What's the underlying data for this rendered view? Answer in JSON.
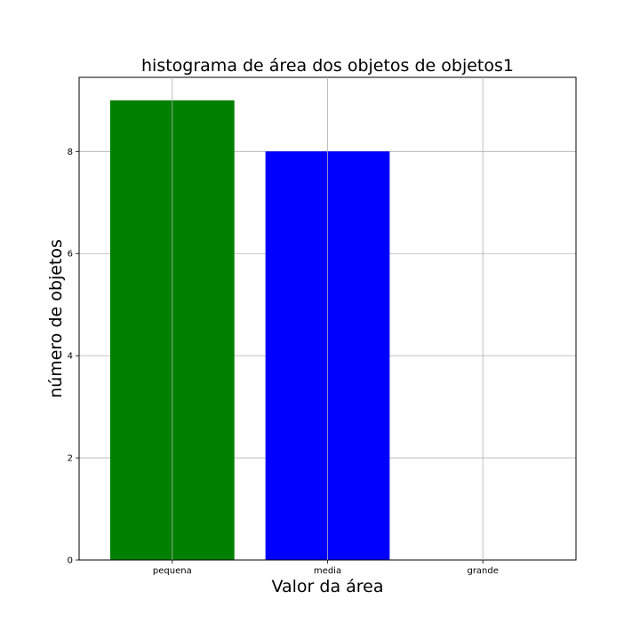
{
  "chart_data": {
    "type": "bar",
    "title": "histograma de área dos objetos de objetos1",
    "xlabel": "Valor da área",
    "ylabel": "número de objetos",
    "categories": [
      "pequena",
      "media",
      "grande"
    ],
    "values": [
      9,
      8,
      0
    ],
    "colors": [
      "#008000",
      "#0000ff",
      "#ff0000"
    ],
    "ylim": [
      0,
      9.45
    ],
    "yticks": [
      0,
      2,
      4,
      6,
      8
    ],
    "ytick_labels": [
      "0",
      "2",
      "4",
      "6",
      "8"
    ],
    "grid": true,
    "legend": "none"
  }
}
